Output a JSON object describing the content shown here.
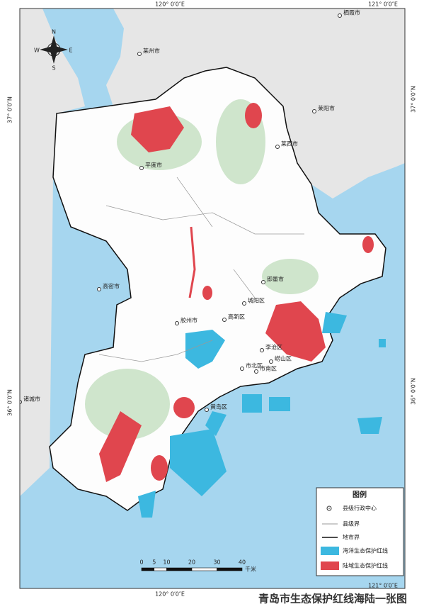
{
  "grid_labels": {
    "top": [
      "120° 0′0″E",
      "121° 0′0″E"
    ],
    "bottom": [
      "120° 0′0″E",
      "121° 0′0″E"
    ],
    "left": [
      "37° 0′0″N",
      "36° 0′0″N"
    ],
    "right": [
      "37° 0′0″N",
      "36° 0′0″N"
    ]
  },
  "compass": {
    "n": "N",
    "s": "S",
    "w": "W",
    "e": "E"
  },
  "places": [
    "栖霞市",
    "莱州市",
    "莱阳市",
    "莱西市",
    "平度市",
    "即墨市",
    "城阳区",
    "高新区",
    "胶州市",
    "高密市",
    "李沧区",
    "崂山区",
    "市北区",
    "市南区",
    "黄岛区",
    "诸城市"
  ],
  "legend": {
    "title": "图例",
    "items": [
      "县级行政中心",
      "县级界",
      "地市界",
      "海洋生态保护红线",
      "陆域生态保护红线"
    ]
  },
  "scale": {
    "ticks": [
      0,
      5,
      10,
      20,
      30,
      40
    ],
    "unit": "千米"
  },
  "caption": "青岛市生态保护红线海陆一张图"
}
